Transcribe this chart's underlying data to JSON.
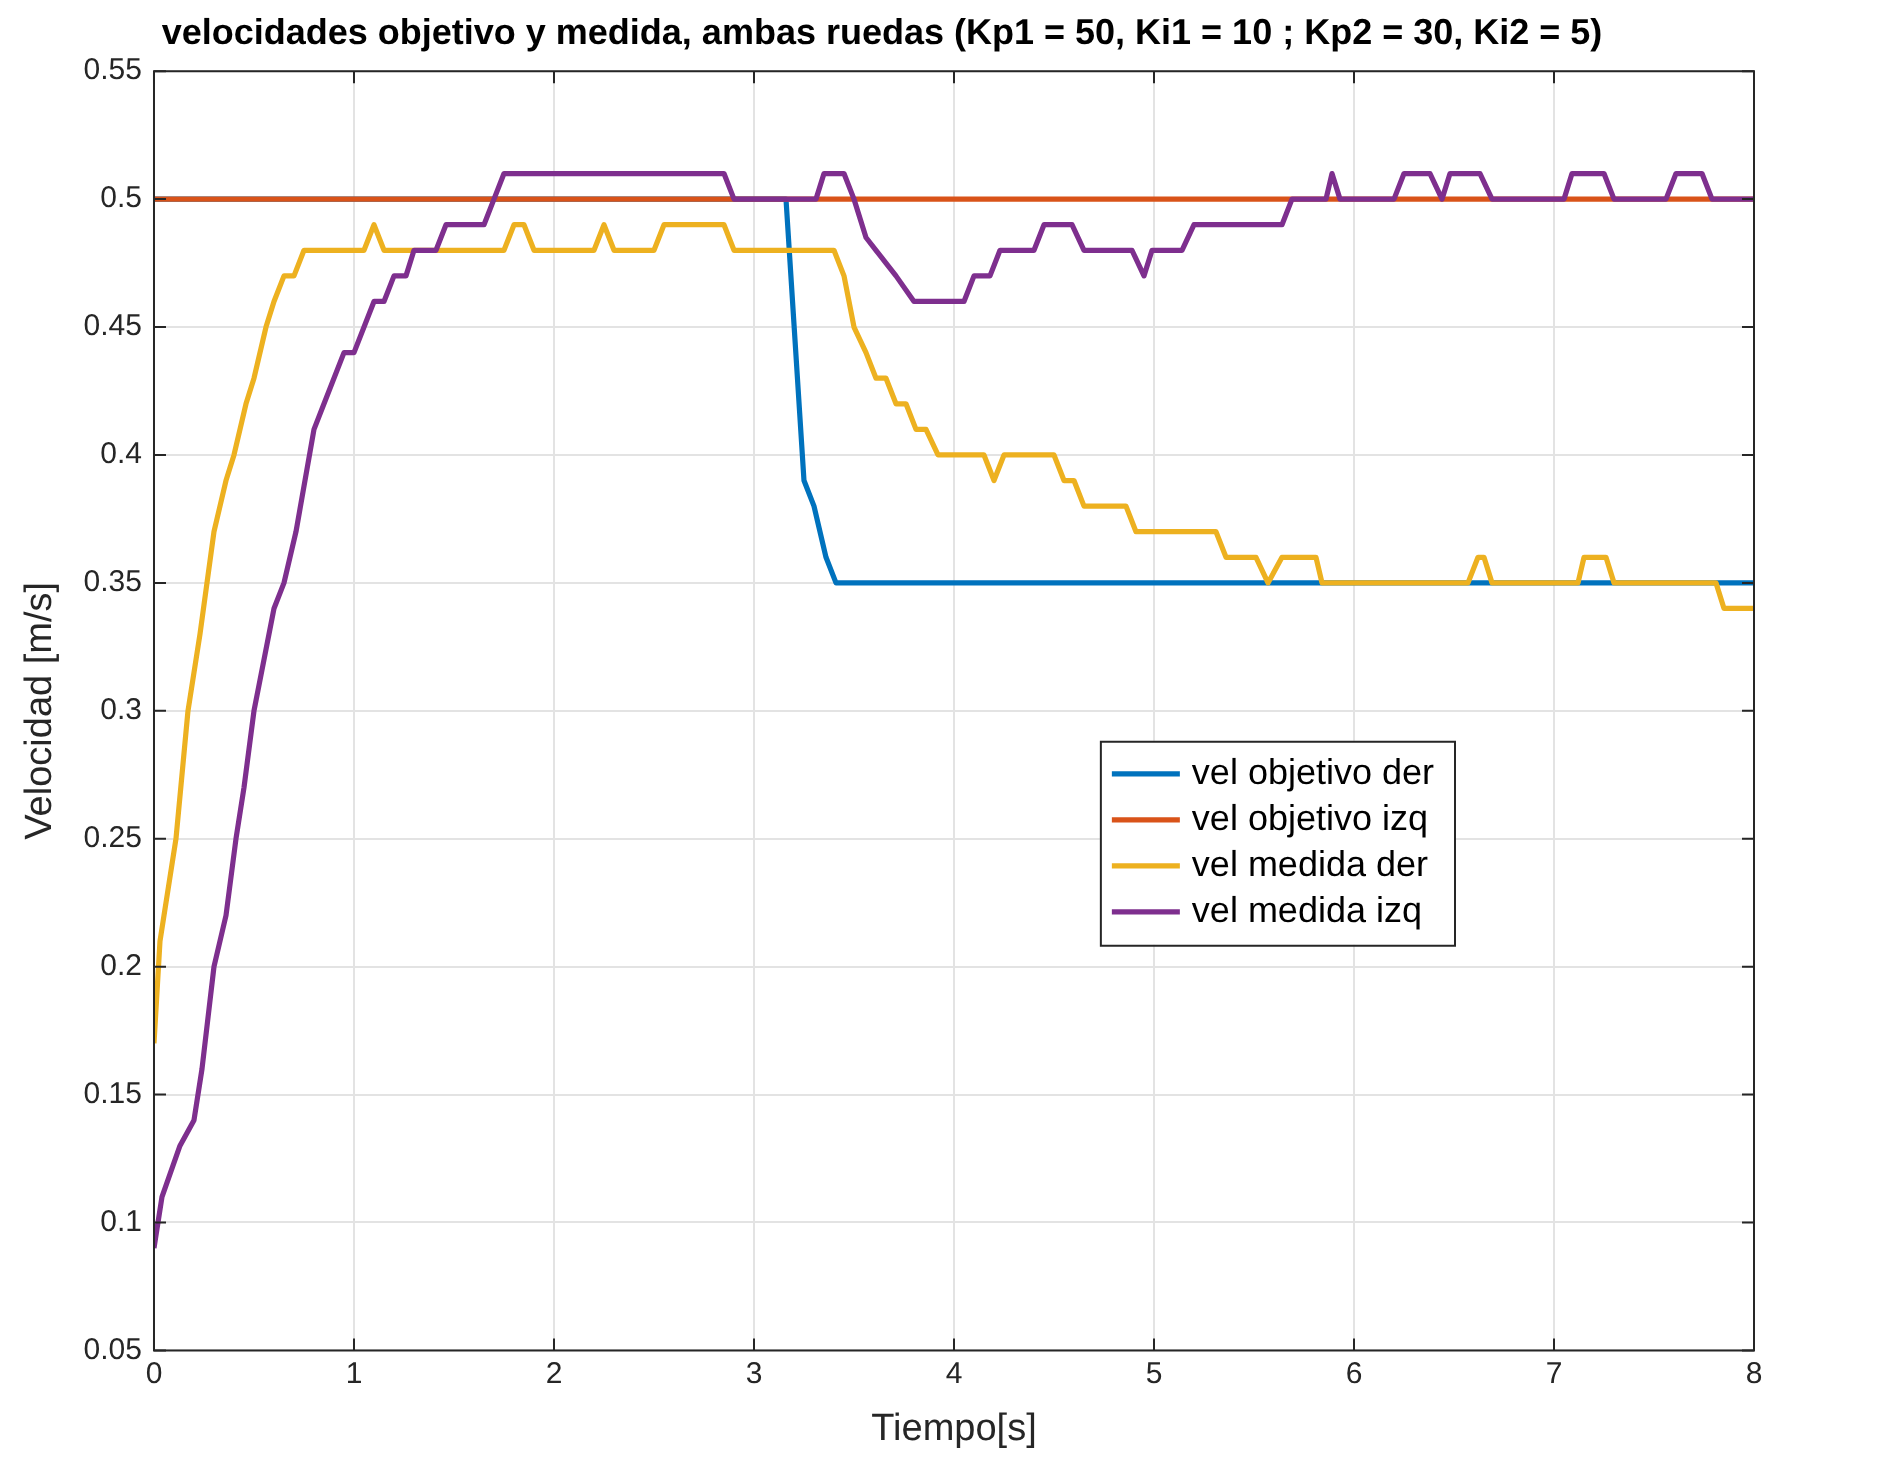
{
  "chart_data": {
    "type": "line",
    "title": "velocidades objetivo y medida, ambas ruedas (Kp1 = 50, Ki1 = 10 ; Kp2 = 30, Ki2 = 5)",
    "xlabel": "Tiempo[s]",
    "ylabel": "Velocidad [m/s]",
    "xlim": [
      0,
      8
    ],
    "xticks": [
      0,
      1,
      2,
      3,
      4,
      5,
      6,
      7,
      8
    ],
    "ylim": [
      0.05,
      0.55
    ],
    "yticks": [
      0.05,
      0.1,
      0.15,
      0.2,
      0.25,
      0.3,
      0.35,
      0.4,
      0.45,
      0.5,
      0.55
    ],
    "grid": true,
    "legend": "center right",
    "marker": "none",
    "line_style": "solid",
    "series": [
      {
        "name": "vel objetivo der",
        "color": "#0072bd",
        "x": [
          0,
          3.16,
          3.25,
          3.3,
          3.36,
          3.41,
          8
        ],
        "values": [
          0.5,
          0.5,
          0.39,
          0.38,
          0.36,
          0.35,
          0.35
        ]
      },
      {
        "name": "vel objetivo izq",
        "color": "#d95319",
        "x": [
          0,
          8
        ],
        "values": [
          0.5,
          0.5
        ]
      },
      {
        "name": "vel medida der",
        "color": "#edb120",
        "x": [
          0,
          0.03,
          0.11,
          0.17,
          0.23,
          0.3,
          0.36,
          0.4,
          0.46,
          0.5,
          0.56,
          0.6,
          0.65,
          0.7,
          0.75,
          1.05,
          1.1,
          1.15,
          1.75,
          1.8,
          1.85,
          1.9,
          2.2,
          2.25,
          2.3,
          2.5,
          2.55,
          2.85,
          2.9,
          3.4,
          3.45,
          3.5,
          3.56,
          3.61,
          3.66,
          3.71,
          3.76,
          3.81,
          3.86,
          3.92,
          4.15,
          4.2,
          4.25,
          4.5,
          4.55,
          4.6,
          4.65,
          4.86,
          4.91,
          5.31,
          5.36,
          5.51,
          5.57,
          5.64,
          5.81,
          5.84,
          6.57,
          6.62,
          6.65,
          6.69,
          7.12,
          7.15,
          7.26,
          7.3,
          7.81,
          7.85,
          8
        ],
        "values": [
          0.17,
          0.21,
          0.25,
          0.3,
          0.33,
          0.37,
          0.39,
          0.4,
          0.42,
          0.43,
          0.45,
          0.46,
          0.47,
          0.47,
          0.48,
          0.48,
          0.49,
          0.48,
          0.48,
          0.49,
          0.49,
          0.48,
          0.48,
          0.49,
          0.48,
          0.48,
          0.49,
          0.49,
          0.48,
          0.48,
          0.47,
          0.45,
          0.44,
          0.43,
          0.43,
          0.42,
          0.42,
          0.41,
          0.41,
          0.4,
          0.4,
          0.39,
          0.4,
          0.4,
          0.39,
          0.39,
          0.38,
          0.38,
          0.37,
          0.37,
          0.36,
          0.36,
          0.35,
          0.36,
          0.36,
          0.35,
          0.35,
          0.36,
          0.36,
          0.35,
          0.35,
          0.36,
          0.36,
          0.35,
          0.35,
          0.34,
          0.34
        ]
      },
      {
        "name": "vel medida izq",
        "color": "#7e2f8e",
        "x": [
          0,
          0.04,
          0.13,
          0.2,
          0.24,
          0.3,
          0.36,
          0.41,
          0.45,
          0.5,
          0.6,
          0.65,
          0.71,
          0.8,
          0.85,
          0.95,
          1,
          1.1,
          1.15,
          1.2,
          1.26,
          1.3,
          1.41,
          1.46,
          1.65,
          1.7,
          1.75,
          2.85,
          2.9,
          3.31,
          3.35,
          3.45,
          3.5,
          3.56,
          3.61,
          3.66,
          3.71,
          3.8,
          4.05,
          4.1,
          4.18,
          4.23,
          4.4,
          4.45,
          4.59,
          4.65,
          4.89,
          4.95,
          4.99,
          5.14,
          5.2,
          5.64,
          5.69,
          5.86,
          5.89,
          5.93,
          6.2,
          6.25,
          6.38,
          6.44,
          6.48,
          6.63,
          6.69,
          7.05,
          7.09,
          7.25,
          7.3,
          7.56,
          7.61,
          7.74,
          7.79,
          8
        ],
        "values": [
          0.09,
          0.11,
          0.13,
          0.14,
          0.16,
          0.2,
          0.22,
          0.25,
          0.27,
          0.3,
          0.34,
          0.35,
          0.37,
          0.41,
          0.42,
          0.44,
          0.44,
          0.46,
          0.46,
          0.47,
          0.47,
          0.48,
          0.48,
          0.49,
          0.49,
          0.5,
          0.51,
          0.51,
          0.5,
          0.5,
          0.51,
          0.51,
          0.5,
          0.485,
          0.48,
          0.475,
          0.47,
          0.46,
          0.46,
          0.47,
          0.47,
          0.48,
          0.48,
          0.49,
          0.49,
          0.48,
          0.48,
          0.47,
          0.48,
          0.48,
          0.49,
          0.49,
          0.5,
          0.5,
          0.51,
          0.5,
          0.5,
          0.51,
          0.51,
          0.5,
          0.51,
          0.51,
          0.5,
          0.5,
          0.51,
          0.51,
          0.5,
          0.5,
          0.51,
          0.51,
          0.5,
          0.5
        ]
      }
    ]
  }
}
